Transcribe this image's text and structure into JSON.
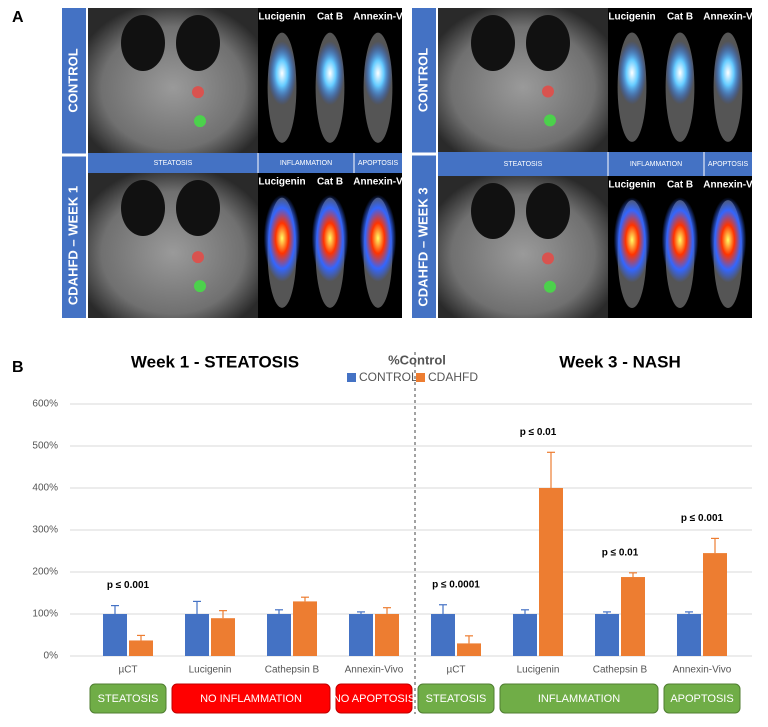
{
  "panel_a": {
    "label": "A",
    "left": {
      "rows": [
        "CONTROL",
        "CDAHFD – WEEK 1"
      ],
      "probes": [
        "Lucigenin",
        "Cat B",
        "Annexin-V"
      ],
      "bands": [
        "STEATOSIS",
        "INFLAMMATION",
        "APOPTOSIS"
      ]
    },
    "right": {
      "rows": [
        "CONTROL",
        "CDAHFD – WEEK 3"
      ],
      "probes": [
        "Lucigenin",
        "Cat B",
        "Annexin-V"
      ],
      "bands": [
        "STEATOSIS",
        "INFLAMMATION",
        "APOPTOSIS"
      ]
    }
  },
  "chart_data": {
    "type": "bar",
    "panel_label": "B",
    "title": "%Control",
    "group_titles": [
      "Week 1 - STEATOSIS",
      "Week 3 - NASH"
    ],
    "categories": [
      "µCT",
      "Lucigenin",
      "Cathepsin B",
      "Annexin-Vivo",
      "µCT",
      "Lucigenin",
      "Cathepsin B",
      "Annexin-Vivo"
    ],
    "series": [
      {
        "name": "CONTROL",
        "color": "#4472c4",
        "values": [
          100,
          100,
          100,
          100,
          100,
          100,
          100,
          100
        ],
        "errors": [
          20,
          30,
          10,
          5,
          22,
          10,
          5,
          5
        ]
      },
      {
        "name": "CDAHFD",
        "color": "#ed7d31",
        "values": [
          37,
          90,
          130,
          100,
          30,
          400,
          188,
          245
        ],
        "errors": [
          12,
          18,
          10,
          15,
          18,
          85,
          10,
          35
        ]
      }
    ],
    "annotations": [
      "p ≤ 0.001",
      null,
      null,
      null,
      "p ≤ 0.0001",
      "p ≤ 0.01",
      "p ≤ 0.01",
      "p ≤ 0.001"
    ],
    "status_boxes": [
      {
        "label": "STEATOSIS",
        "color": "#70ad47"
      },
      {
        "label": "NO INFLAMMATION",
        "color": "#ff0000"
      },
      {
        "label": "NO APOPTOSIS",
        "color": "#ff0000"
      },
      {
        "label": "STEATOSIS",
        "color": "#70ad47"
      },
      {
        "label": "INFLAMMATION",
        "color": "#70ad47"
      },
      {
        "label": "APOPTOSIS",
        "color": "#70ad47"
      }
    ],
    "ylim": [
      0,
      600
    ],
    "yticks": [
      {
        "value": 0,
        "label": "0%"
      },
      {
        "value": 100,
        "label": "100%"
      },
      {
        "value": 200,
        "label": "200%"
      },
      {
        "value": 300,
        "label": "300%"
      },
      {
        "value": 400,
        "label": "400%"
      },
      {
        "value": 500,
        "label": "500%"
      },
      {
        "value": 600,
        "label": "600%"
      }
    ],
    "grid": true,
    "legend": "top"
  }
}
